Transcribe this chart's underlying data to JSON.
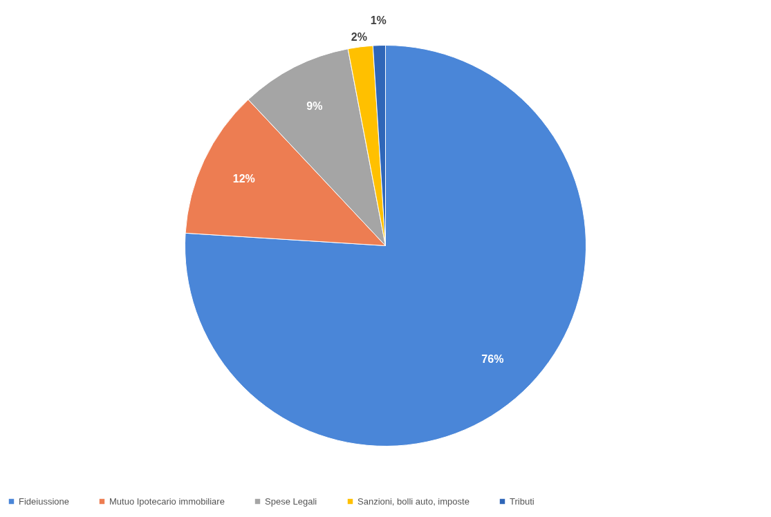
{
  "chart_data": {
    "type": "pie",
    "categories": [
      "Fideiussione",
      "Mutuo Ipotecario immobiliare",
      "Spese Legali",
      "Sanzioni, bolli auto, imposte",
      "Tributi"
    ],
    "values": [
      76,
      12,
      9,
      2,
      1
    ],
    "colors": [
      "#4a86d8",
      "#ed7d52",
      "#a5a5a5",
      "#ffc000",
      "#2f66b8"
    ],
    "value_labels": [
      "76%",
      "12%",
      "9%",
      "2%",
      "1%"
    ],
    "legend": "bottom"
  }
}
